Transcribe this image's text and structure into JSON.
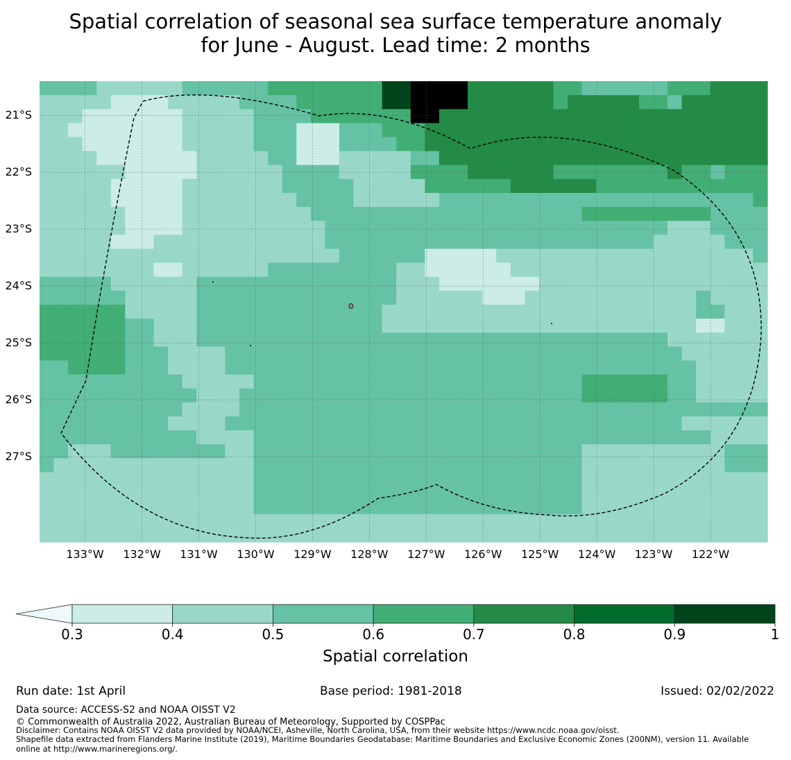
{
  "title": {
    "line1": "Spatial correlation of seasonal sea surface temperature anomaly",
    "line2": "for June - August. Lead time: 2 months"
  },
  "colors": {
    "under": "#edf8fb",
    "bins": [
      "#ccece6",
      "#99d8c9",
      "#66c2a4",
      "#41ae76",
      "#238b45",
      "#006d2c",
      "#00441b"
    ],
    "grid": "#555555",
    "eez": "#000000"
  },
  "map": {
    "lon_range": [
      -133.8,
      -121.0
    ],
    "lat_range": [
      -28.5,
      -20.4
    ],
    "lat_ticks": [
      {
        "value": -21,
        "label": "21°S"
      },
      {
        "value": -22,
        "label": "22°S"
      },
      {
        "value": -23,
        "label": "23°S"
      },
      {
        "value": -24,
        "label": "24°S"
      },
      {
        "value": -25,
        "label": "25°S"
      },
      {
        "value": -26,
        "label": "26°S"
      },
      {
        "value": -27,
        "label": "27°S"
      }
    ],
    "lon_ticks": [
      {
        "value": -133,
        "label": "133°W"
      },
      {
        "value": -132,
        "label": "132°W"
      },
      {
        "value": -131,
        "label": "131°W"
      },
      {
        "value": -130,
        "label": "130°W"
      },
      {
        "value": -129,
        "label": "129°W"
      },
      {
        "value": -128,
        "label": "128°W"
      },
      {
        "value": -127,
        "label": "127°W"
      },
      {
        "value": -126,
        "label": "126°W"
      },
      {
        "value": -125,
        "label": "125°W"
      },
      {
        "value": -124,
        "label": "124°W"
      },
      {
        "value": -123,
        "label": "123°W"
      },
      {
        "value": -122,
        "label": "122°W"
      }
    ],
    "grid_columns": 51,
    "grid_rows": 33,
    "cell_rows": [
      "222211111122222233333333667777444444332222223334444",
      "111110000111112222333333667777444444344444332444444",
      "111000000011111222233333337744444444444444444444444",
      "110000000011111222000222333444444444444444444444444",
      "111000000011111222000222233444444444444444444444444",
      "111100000001111122000111112244444444444444444444444",
      "111111000001111112222111113333444444333333334332333",
      "111110000011111112222211111333333444444333333333333",
      "111110000011111111222211111122222222222222222222223",
      "111111000011111111122222222222222222223333333332222",
      "111111000011111111112222222222222222222222221112222",
      "111110001111111111112222222222222222222222211111222",
      "111111111111111111111222222000001111111111111111112",
      "111111110011111122222222211000000111111111111111111",
      "222221111112222222222222211100000001111111111111111",
      "222222111112222222222222211111100011111111111121111",
      "333333111112222222222222111111111111111111111122111",
      "333333221112222222222222111111111111111111111100111",
      "333333221112222222222222222222222222222222221111111",
      "333333222111122222222222222222222222222222222111111",
      "223333222111122222222222222222222222222222222211111",
      "222222222211111222222222222222222222223333332211111",
      "222222222221112222222222222222222222223333332211111",
      "222222222211112222222222222222222222222222222222222",
      "222222222111122222222222222222222222222222222111111",
      "222222222221111222222222222222222222222222222221111",
      "221112222222211222222222222222222222221111111111222",
      "211111111111111222222222222222222222221111111111222",
      "111111111111111222222222222222222222221111111111111",
      "111111111111111222222222222222222222221111111111111",
      "111111111111111222222222222222222222221111111111111",
      "111111111111111111111111111111111111111111111111111",
      "111111111111111111111111111111111111111111111111111"
    ]
  },
  "colorbar": {
    "ticks": [
      "0.3",
      "0.4",
      "0.5",
      "0.6",
      "0.7",
      "0.8",
      "0.9",
      "1"
    ],
    "label": "Spatial correlation"
  },
  "footer": {
    "run_date": "Run date: 1st April",
    "base_period": "Base period: 1981-2018",
    "issued": "Issued: 02/02/2022",
    "data_source": "Data source: ACCESS-S2 and NOAA OISST V2",
    "copyright": "© Commonwealth of Australia 2022, Australian Bureau of Meteorology, Supported by COSPPac",
    "disclaimer": "Disclaimer: Contains NOAA OISST V2 data provided by NOAA/NCEI, Asheville, North Carolina, USA, from their website https://www.ncdc.noaa.gov/oisst.",
    "shapefile_line1": "Shapefile data extracted from Flanders Marine Institute (2019), Maritime Boundaries Geodatabase: Maritime Boundaries and Exclusive Economic Zones (200NM), version 11. Available",
    "shapefile_line2": "online at http://www.marineregions.org/."
  }
}
